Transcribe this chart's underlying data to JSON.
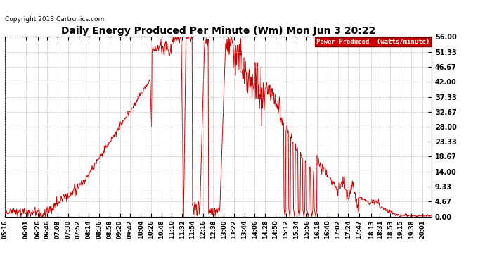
{
  "title": "Daily Energy Produced Per Minute (Wm) Mon Jun 3 20:22",
  "copyright": "Copyright 2013 Cartronics.com",
  "legend_label": "Power Produced  (watts/minute)",
  "legend_bg": "#cc0000",
  "legend_fg": "#ffffff",
  "line_color": "#cc0000",
  "bg_color": "#ffffff",
  "grid_color": "#b0b0b0",
  "yticks": [
    0.0,
    4.67,
    9.33,
    14.0,
    18.67,
    23.33,
    28.0,
    32.67,
    37.33,
    42.0,
    46.67,
    51.33,
    56.0
  ],
  "ymax": 56.0,
  "ymin": 0.0,
  "xtick_labels": [
    "05:16",
    "06:01",
    "06:26",
    "06:46",
    "07:08",
    "07:30",
    "07:52",
    "08:14",
    "08:36",
    "08:58",
    "09:20",
    "09:42",
    "10:04",
    "10:26",
    "10:48",
    "11:10",
    "11:32",
    "11:54",
    "12:16",
    "12:38",
    "13:00",
    "13:22",
    "13:44",
    "14:06",
    "14:28",
    "14:50",
    "15:12",
    "15:34",
    "15:56",
    "16:18",
    "16:40",
    "17:02",
    "17:24",
    "17:47",
    "18:13",
    "18:31",
    "18:53",
    "19:15",
    "19:38",
    "20:01"
  ]
}
